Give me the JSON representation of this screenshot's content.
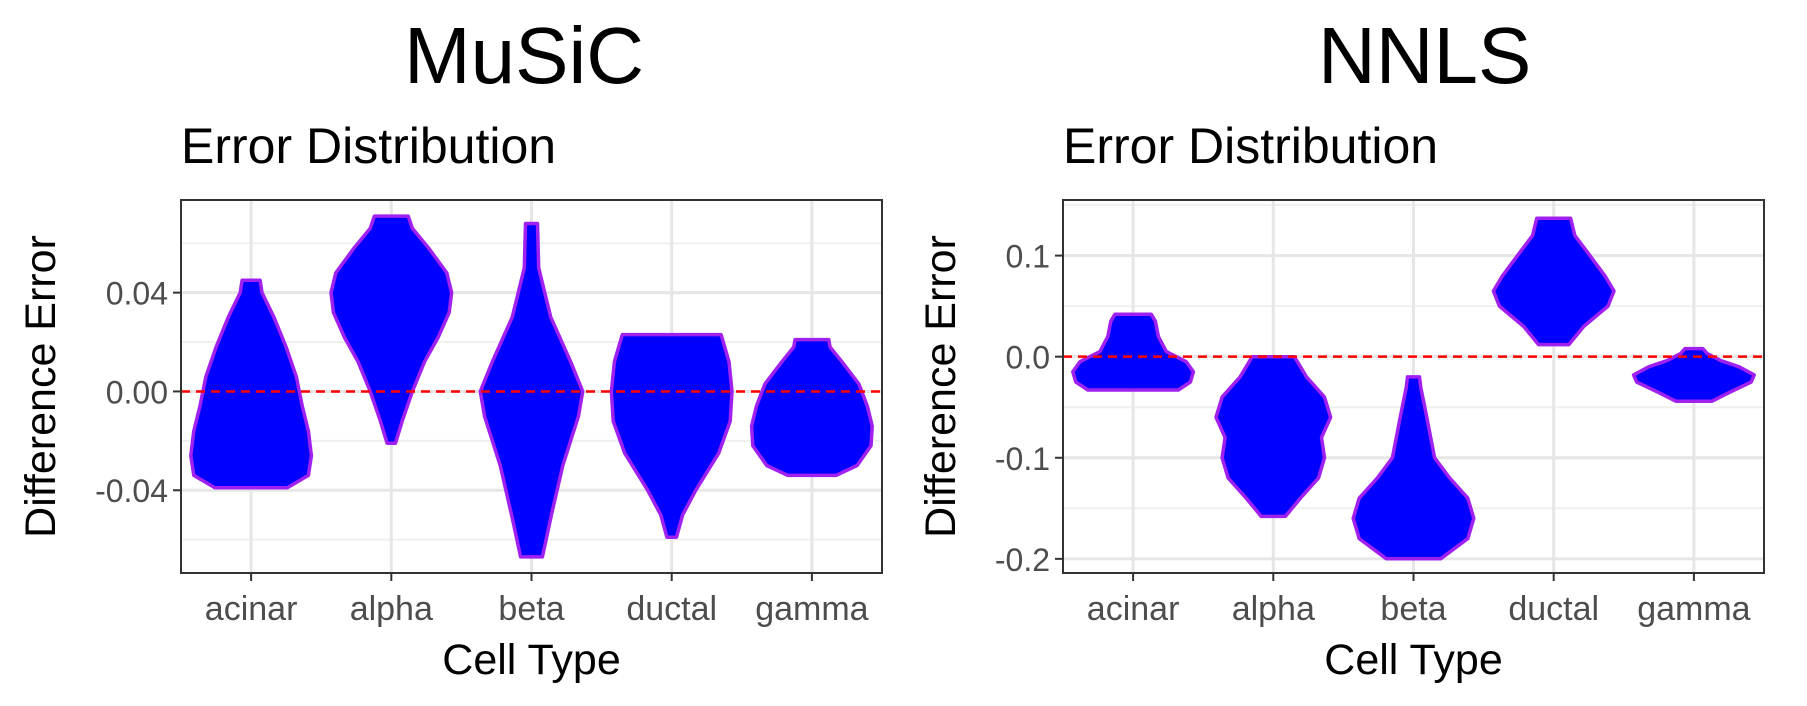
{
  "panels": [
    {
      "heading": "MuSiC",
      "chart_data": {
        "type": "violin",
        "title": "Error Distribution",
        "xlabel": "Cell Type",
        "ylabel": "Difference Error",
        "categories": [
          "acinar",
          "alpha",
          "beta",
          "ductal",
          "gamma"
        ],
        "ylim": [
          -0.0735,
          0.0775
        ],
        "yticks": [
          -0.04,
          0.0,
          0.04
        ],
        "ytick_labels": [
          "-0.04",
          "0.00",
          "0.04"
        ],
        "reference_line": 0.0,
        "grid": true,
        "fill_color": "#0000ff",
        "outline_color": "#a020f0",
        "reference_color": "#ff0000",
        "violins": [
          {
            "category": "acinar",
            "min": -0.039,
            "max": 0.045,
            "profile": [
              [
                -0.039,
                0.6
              ],
              [
                -0.034,
                0.95
              ],
              [
                -0.026,
                1.0
              ],
              [
                -0.016,
                0.95
              ],
              [
                -0.006,
                0.85
              ],
              [
                0.006,
                0.75
              ],
              [
                0.018,
                0.58
              ],
              [
                0.03,
                0.38
              ],
              [
                0.04,
                0.18
              ],
              [
                0.045,
                0.15
              ]
            ]
          },
          {
            "category": "alpha",
            "min": -0.021,
            "max": 0.071,
            "profile": [
              [
                -0.021,
                0.07
              ],
              [
                -0.012,
                0.18
              ],
              [
                0.0,
                0.35
              ],
              [
                0.012,
                0.55
              ],
              [
                0.022,
                0.78
              ],
              [
                0.032,
                0.96
              ],
              [
                0.04,
                1.0
              ],
              [
                0.048,
                0.92
              ],
              [
                0.058,
                0.62
              ],
              [
                0.066,
                0.35
              ],
              [
                0.071,
                0.28
              ]
            ]
          },
          {
            "category": "beta",
            "min": -0.067,
            "max": 0.068,
            "profile": [
              [
                -0.067,
                0.18
              ],
              [
                -0.05,
                0.33
              ],
              [
                -0.03,
                0.52
              ],
              [
                -0.01,
                0.78
              ],
              [
                0.0,
                0.85
              ],
              [
                0.012,
                0.65
              ],
              [
                0.03,
                0.32
              ],
              [
                0.05,
                0.12
              ],
              [
                0.068,
                0.1
              ]
            ]
          },
          {
            "category": "ductal",
            "min": -0.059,
            "max": 0.023,
            "profile": [
              [
                -0.059,
                0.08
              ],
              [
                -0.05,
                0.18
              ],
              [
                -0.04,
                0.4
              ],
              [
                -0.025,
                0.78
              ],
              [
                -0.012,
                0.97
              ],
              [
                0.0,
                1.0
              ],
              [
                0.012,
                0.95
              ],
              [
                0.023,
                0.82
              ]
            ]
          },
          {
            "category": "gamma",
            "min": -0.034,
            "max": 0.021,
            "profile": [
              [
                -0.034,
                0.4
              ],
              [
                -0.03,
                0.75
              ],
              [
                -0.022,
                0.98
              ],
              [
                -0.014,
                1.0
              ],
              [
                -0.006,
                0.92
              ],
              [
                0.003,
                0.78
              ],
              [
                0.012,
                0.5
              ],
              [
                0.018,
                0.3
              ],
              [
                0.021,
                0.28
              ]
            ]
          }
        ]
      }
    },
    {
      "heading": "NNLS",
      "chart_data": {
        "type": "violin",
        "title": "Error Distribution",
        "xlabel": "Cell Type",
        "ylabel": "Difference Error",
        "categories": [
          "acinar",
          "alpha",
          "beta",
          "ductal",
          "gamma"
        ],
        "ylim": [
          -0.214,
          0.155
        ],
        "yticks": [
          -0.2,
          -0.1,
          0.0,
          0.1
        ],
        "ytick_labels": [
          "-0.2",
          "-0.1",
          "0.0",
          "0.1"
        ],
        "reference_line": 0.0,
        "grid": true,
        "fill_color": "#0000ff",
        "outline_color": "#a020f0",
        "reference_color": "#ff0000",
        "violins": [
          {
            "category": "acinar",
            "min": -0.033,
            "max": 0.042,
            "profile": [
              [
                -0.033,
                0.75
              ],
              [
                -0.025,
                0.95
              ],
              [
                -0.015,
                1.0
              ],
              [
                -0.005,
                0.88
              ],
              [
                0.005,
                0.55
              ],
              [
                0.02,
                0.42
              ],
              [
                0.035,
                0.37
              ],
              [
                0.042,
                0.3
              ]
            ]
          },
          {
            "category": "alpha",
            "min": -0.158,
            "max": 0.0,
            "profile": [
              [
                -0.158,
                0.2
              ],
              [
                -0.14,
                0.45
              ],
              [
                -0.12,
                0.75
              ],
              [
                -0.1,
                0.85
              ],
              [
                -0.08,
                0.8
              ],
              [
                -0.06,
                0.95
              ],
              [
                -0.04,
                0.85
              ],
              [
                -0.02,
                0.55
              ],
              [
                0.0,
                0.35
              ]
            ]
          },
          {
            "category": "beta",
            "min": -0.2,
            "max": -0.02,
            "profile": [
              [
                -0.2,
                0.45
              ],
              [
                -0.18,
                0.9
              ],
              [
                -0.16,
                1.0
              ],
              [
                -0.14,
                0.9
              ],
              [
                -0.12,
                0.6
              ],
              [
                -0.1,
                0.35
              ],
              [
                -0.06,
                0.22
              ],
              [
                -0.03,
                0.12
              ],
              [
                -0.02,
                0.1
              ]
            ]
          },
          {
            "category": "ductal",
            "min": 0.012,
            "max": 0.137,
            "profile": [
              [
                0.012,
                0.25
              ],
              [
                0.03,
                0.5
              ],
              [
                0.05,
                0.9
              ],
              [
                0.065,
                1.0
              ],
              [
                0.08,
                0.85
              ],
              [
                0.1,
                0.6
              ],
              [
                0.12,
                0.35
              ],
              [
                0.137,
                0.28
              ]
            ]
          },
          {
            "category": "gamma",
            "min": -0.044,
            "max": 0.008,
            "profile": [
              [
                -0.044,
                0.3
              ],
              [
                -0.035,
                0.6
              ],
              [
                -0.025,
                0.95
              ],
              [
                -0.018,
                1.0
              ],
              [
                -0.01,
                0.75
              ],
              [
                -0.004,
                0.45
              ],
              [
                0.003,
                0.22
              ],
              [
                0.008,
                0.15
              ]
            ]
          }
        ]
      }
    }
  ]
}
